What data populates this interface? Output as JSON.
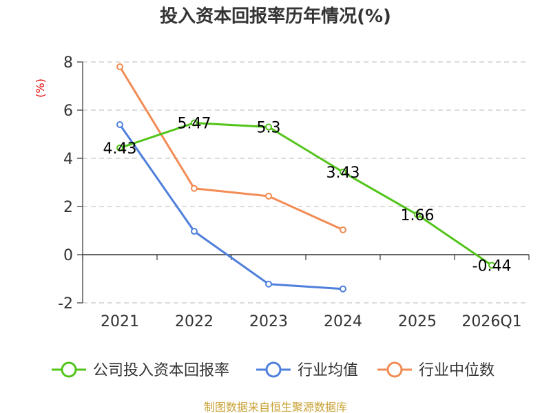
{
  "chart_data": {
    "type": "line",
    "title": "投入资本回报率历年情况(%)",
    "ylabel": "(%)",
    "xlabel": "",
    "categories": [
      "2021",
      "2022",
      "2023",
      "2024",
      "2025",
      "2026Q1"
    ],
    "ylim": [
      -2,
      8
    ],
    "yticks": [
      -2,
      0,
      2,
      4,
      6,
      8
    ],
    "grid": true,
    "legend_position": "bottom",
    "series": [
      {
        "name": "公司投入资本回报率",
        "color": "#52c41a",
        "values": [
          4.43,
          5.47,
          5.3,
          3.43,
          1.66,
          -0.44
        ],
        "labels": [
          "4.43",
          "5.47",
          "5.3",
          "3.43",
          "1.66",
          "-0.44"
        ]
      },
      {
        "name": "行业均值",
        "color": "#4f7fdc",
        "values": [
          5.4,
          0.97,
          -1.22,
          -1.42,
          null,
          null
        ]
      },
      {
        "name": "行业中位数",
        "color": "#f28b54",
        "values": [
          7.8,
          2.75,
          2.43,
          1.03,
          null,
          null
        ]
      }
    ],
    "source": "制图数据来自恒生聚源数据库"
  }
}
